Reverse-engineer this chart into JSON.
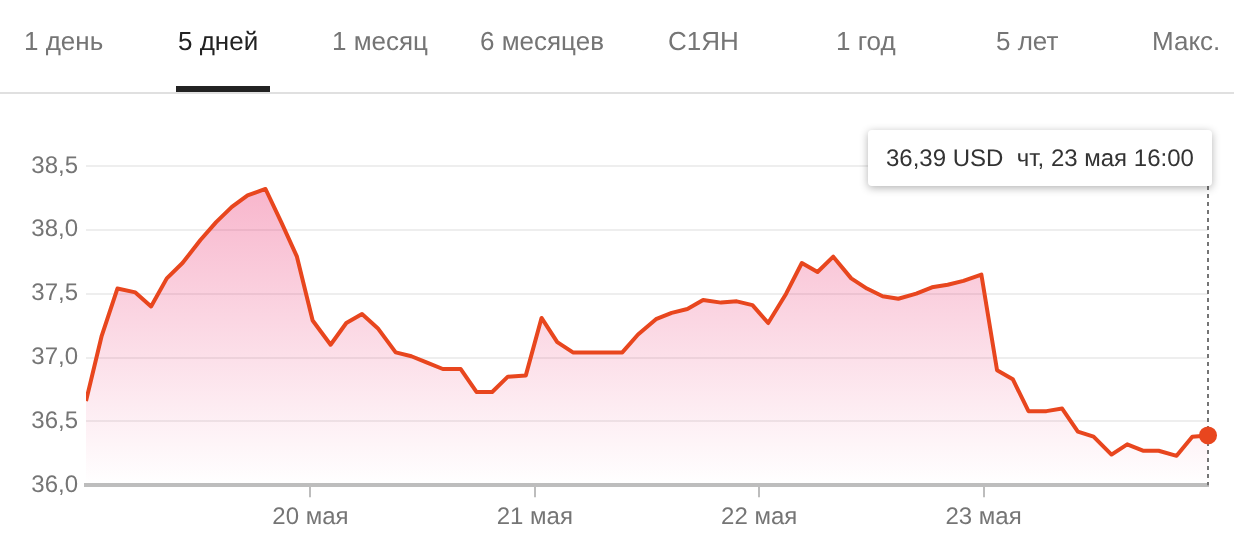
{
  "chart_data": {
    "type": "area",
    "x": [
      19,
      19.07,
      19.14,
      19.22,
      19.29,
      19.36,
      19.43,
      19.51,
      19.58,
      19.65,
      19.72,
      19.8,
      19.87,
      19.94,
      20.01,
      20.09,
      20.16,
      20.23,
      20.3,
      20.38,
      20.45,
      20.52,
      20.59,
      20.67,
      20.74,
      20.81,
      20.88,
      20.96,
      21.03,
      21.1,
      21.17,
      21.25,
      21.32,
      21.39,
      21.46,
      21.54,
      21.61,
      21.68,
      21.75,
      21.83,
      21.9,
      21.97,
      22.04,
      22.12,
      22.19,
      22.26,
      22.33,
      22.41,
      22.48,
      22.55,
      22.62,
      22.7,
      22.77,
      22.84,
      22.91,
      22.99,
      23.06,
      23.13,
      23.2,
      23.28,
      23.35,
      23.42,
      23.49,
      23.57,
      23.64,
      23.71,
      23.78,
      23.86,
      23.93,
      24
    ],
    "series": [
      {
        "color": "#e8461e",
        "values": [
          36.66,
          37.17,
          37.54,
          37.51,
          37.4,
          37.62,
          37.74,
          37.92,
          38.06,
          38.18,
          38.27,
          38.32,
          38.06,
          37.79,
          37.29,
          37.1,
          37.27,
          37.34,
          37.23,
          37.04,
          37.01,
          36.96,
          36.91,
          36.91,
          36.73,
          36.73,
          36.85,
          36.86,
          37.31,
          37.12,
          37.04,
          37.04,
          37.04,
          37.04,
          37.18,
          37.3,
          37.35,
          37.38,
          37.45,
          37.43,
          37.44,
          37.41,
          37.27,
          37.5,
          37.74,
          37.67,
          37.79,
          37.62,
          37.54,
          37.48,
          37.46,
          37.5,
          37.55,
          37.57,
          37.6,
          37.65,
          36.9,
          36.83,
          36.58,
          36.58,
          36.6,
          36.42,
          36.38,
          36.24,
          36.32,
          36.27,
          36.27,
          36.23,
          36.38,
          36.39
        ]
      }
    ],
    "xlim": [
      19,
      24
    ],
    "xticks": [
      {
        "value": 20,
        "label": "20 мая"
      },
      {
        "value": 21,
        "label": "21 мая"
      },
      {
        "value": 22,
        "label": "22 мая"
      },
      {
        "value": 23,
        "label": "23 мая"
      }
    ],
    "ylim": [
      36,
      38.5
    ],
    "yticks": [
      {
        "value": 36,
        "label": "36,0"
      },
      {
        "value": 36.5,
        "label": "36,5"
      },
      {
        "value": 37,
        "label": "37,0"
      },
      {
        "value": 37.5,
        "label": "37,5"
      },
      {
        "value": 38,
        "label": "38,0"
      },
      {
        "value": 38.5,
        "label": "38,5"
      }
    ],
    "grid": "y",
    "legend": false,
    "marker": "none",
    "ref_lines": [
      {
        "axis": "x",
        "value": 24,
        "line_style": "dotted",
        "color": "#757575"
      }
    ],
    "annotations": [
      "1 день",
      "5 дней",
      "1 месяц",
      "6 месяцев",
      "С1ЯН",
      "1 год",
      "5 лет",
      "Макс.",
      "36,39 USD  чт, 23 мая 16:00"
    ]
  }
}
